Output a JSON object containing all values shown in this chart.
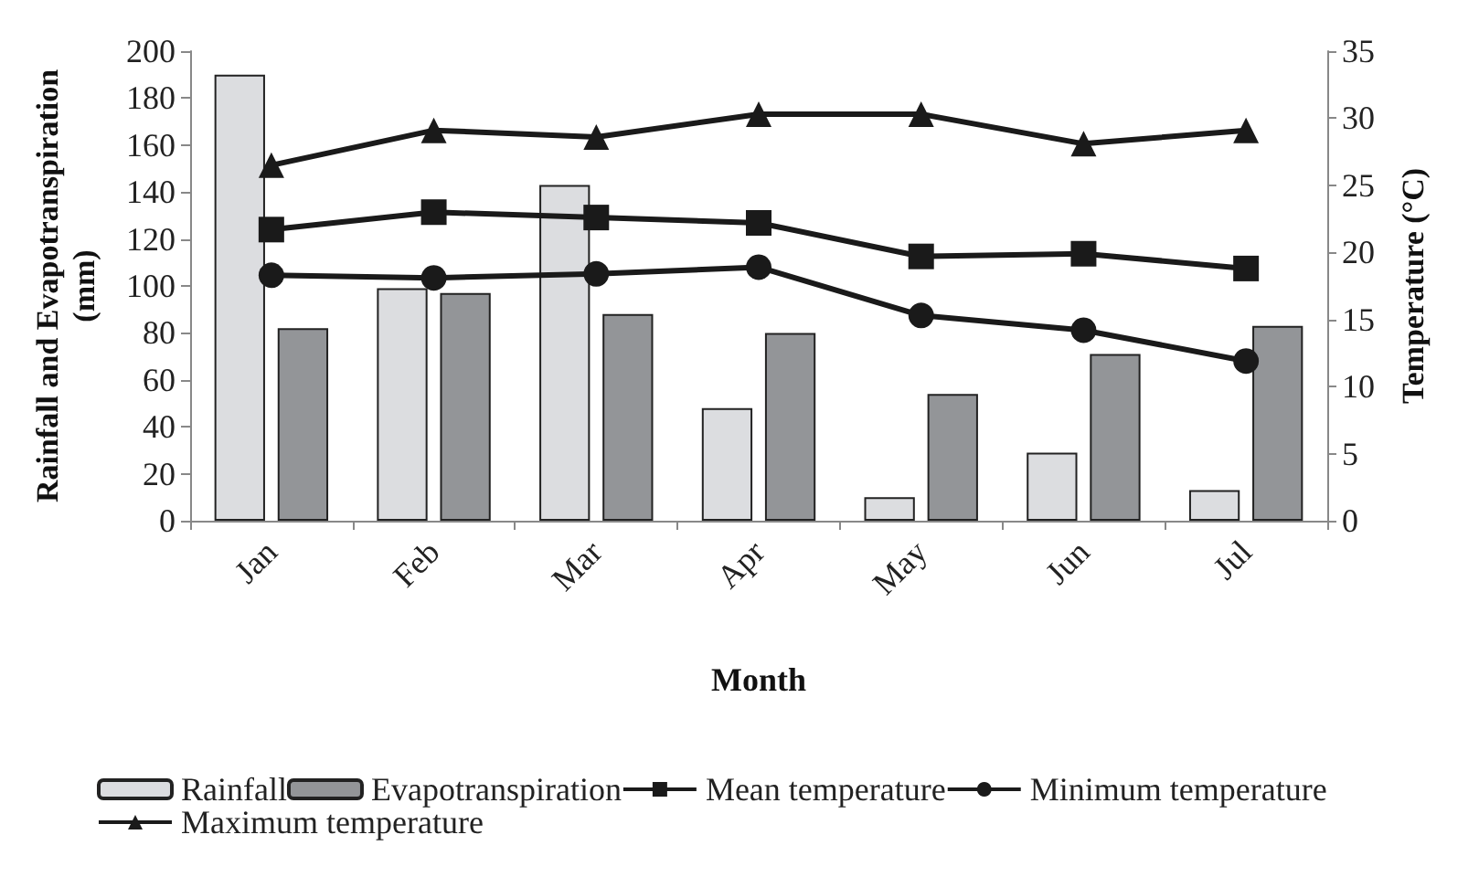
{
  "chart_data": {
    "type": "bar",
    "xlabel": "Month",
    "ylabel": "Rainfall and Evapotranspiration\n(mm)",
    "y2label": "Temperature (°C)",
    "categories": [
      "Jan",
      "Feb",
      "Mar",
      "Apr",
      "May",
      "Jun",
      "Jul"
    ],
    "series": [
      {
        "name": "Rainfall",
        "color": "#dcdde0",
        "values": [
          190,
          99,
          143,
          48,
          10,
          29,
          13
        ]
      },
      {
        "name": "Evapotranspiration",
        "color": "#939598",
        "values": [
          82,
          97,
          88,
          80,
          54,
          71,
          83
        ]
      },
      {
        "name": "Mean temperature",
        "type": "line",
        "axis": "y2",
        "marker": "square",
        "color": "#1a1a1a",
        "values": [
          21.7,
          23.0,
          22.6,
          22.2,
          19.7,
          19.9,
          18.8
        ]
      },
      {
        "name": "Minimum temperature",
        "type": "line",
        "axis": "y2",
        "marker": "circle",
        "color": "#1a1a1a",
        "values": [
          18.3,
          18.1,
          18.4,
          18.9,
          15.3,
          14.2,
          11.9
        ]
      },
      {
        "name": "Maximum temperature",
        "type": "line",
        "axis": "y2",
        "marker": "triangle",
        "color": "#1a1a1a",
        "values": [
          26.5,
          29.1,
          28.6,
          30.3,
          30.3,
          28.1,
          29.1
        ]
      }
    ],
    "ylim": [
      0,
      200
    ],
    "yticks": [
      0,
      20,
      40,
      60,
      80,
      100,
      120,
      140,
      160,
      180,
      200
    ],
    "y2lim": [
      0,
      35
    ],
    "y2ticks": [
      0,
      5,
      10,
      15,
      20,
      25,
      30,
      35
    ],
    "legend": "bottom",
    "grid": false,
    "line_style": "solid"
  }
}
